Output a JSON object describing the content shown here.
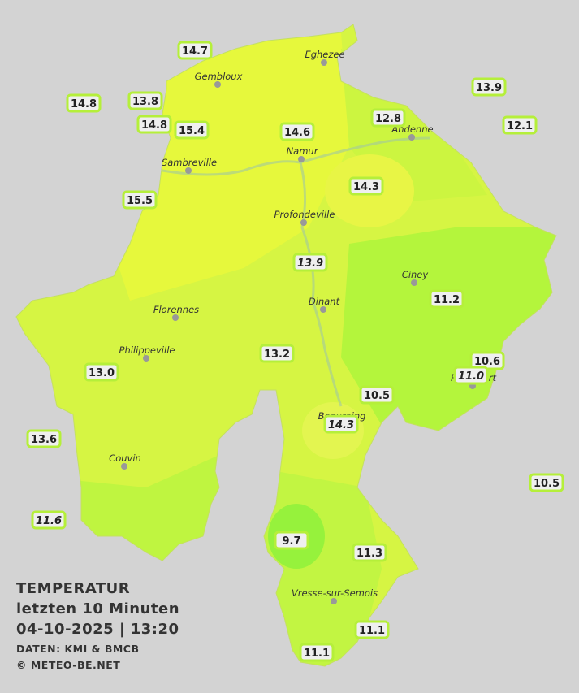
{
  "title": {
    "lines": [
      "TEMPERATUR",
      "letzten 10 Minuten",
      "04-10-2025  |  13:20"
    ]
  },
  "credits": [
    "DATEN: KMI & BMCB",
    "© METEO-BE.NET"
  ],
  "cities": [
    "Eghezee",
    "Gembloux",
    "Andenne",
    "Namur",
    "Sambreville",
    "Profondeville",
    "Ciney",
    "Dinant",
    "Florennes",
    "Philippeville",
    "Beauraing",
    "Rochefort",
    "Couvin",
    "Vresse-sur-Semois"
  ],
  "stations": [
    "14.7",
    "13.8",
    "14.8",
    "14.8",
    "15.4",
    "14.6",
    "12.8",
    "13.9",
    "12.1",
    "15.5",
    "14.3",
    "13.9",
    "11.2",
    "13.2",
    "10.6",
    "11.0",
    "13.0",
    "10.5",
    "14.3",
    "13.6",
    "10.5",
    "11.6",
    "9.7",
    "11.3",
    "11.1",
    "11.1"
  ]
}
